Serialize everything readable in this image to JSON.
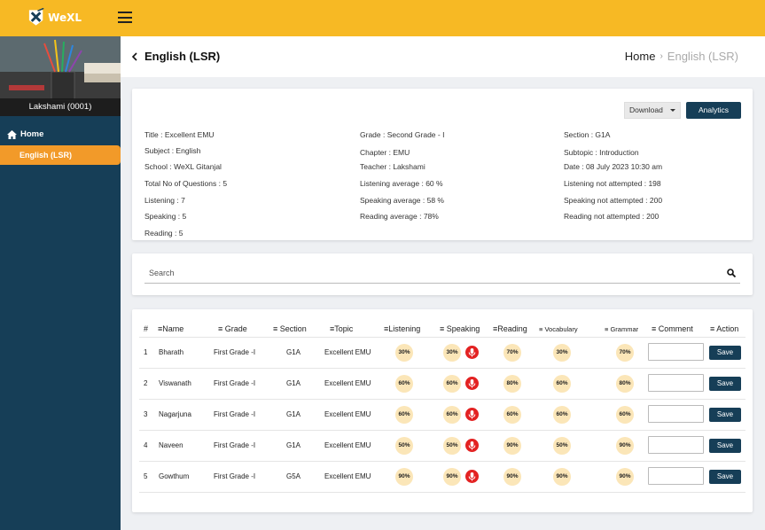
{
  "brand": {
    "name": "WeXL"
  },
  "sidebar": {
    "profile_name": "Lakshami (0001)",
    "nav": [
      {
        "label": "Home",
        "icon": "home-icon"
      },
      {
        "label": "English (LSR)",
        "active": true
      }
    ]
  },
  "header": {
    "title": "English (LSR)",
    "breadcrumb": [
      "Home",
      "English (LSR)"
    ]
  },
  "info": {
    "download_label": "Download",
    "analytics_label": "Analytics",
    "col1": [
      "Title :   Excellent EMU",
      "Subject :   English",
      "School :   WeXL Gitanjal",
      "Total No of Questions :   5",
      "Listening : 7",
      "Speaking :   5",
      "Reading :   5"
    ],
    "col2": [
      "Grade :  Second Grade - I",
      "Chapter :  EMU",
      "Teacher : Lakshami",
      "Listening average : 60 %",
      "Speaking  average : 58 %",
      "Reading  average : 78%"
    ],
    "col3": [
      "Section :   G1A",
      "Subtopic :   Introduction",
      "Date : 08 July 2023 10:30 am",
      "Listening not attempted : 198",
      "Speaking not attempted : 200",
      "Reading not attempted : 200"
    ]
  },
  "search": {
    "placeholder": "Search"
  },
  "table": {
    "headers": [
      "#",
      "Name",
      "Grade",
      "Section",
      "Topic",
      "Listening",
      "Speaking",
      "Reading",
      "Vocabulary",
      "Grammar",
      "Comment",
      "Action"
    ],
    "save_label": "Save",
    "rows": [
      {
        "num": "1",
        "name": "Bharath",
        "grade": "First Grade -I",
        "section": "G1A",
        "topic": "Excellent EMU",
        "listening": "30%",
        "speaking": "30%",
        "reading": "70%",
        "vocabulary": "30%",
        "grammar": "70%"
      },
      {
        "num": "2",
        "name": "Viswanath",
        "grade": "First Grade -I",
        "section": "G1A",
        "topic": "Excellent EMU",
        "listening": "60%",
        "speaking": "60%",
        "reading": "80%",
        "vocabulary": "60%",
        "grammar": "80%"
      },
      {
        "num": "3",
        "name": "Nagarjuna",
        "grade": "First Grade -I",
        "section": "G1A",
        "topic": "Excellent EMU",
        "listening": "60%",
        "speaking": "60%",
        "reading": "60%",
        "vocabulary": "60%",
        "grammar": "60%"
      },
      {
        "num": "4",
        "name": "Naveen",
        "grade": "First Grade -I",
        "section": "G1A",
        "topic": "Excellent EMU",
        "listening": "50%",
        "speaking": "50%",
        "reading": "90%",
        "vocabulary": "50%",
        "grammar": "90%"
      },
      {
        "num": "5",
        "name": "Gowthum",
        "grade": "First Grade -I",
        "section": "G5A",
        "topic": "Excellent EMU",
        "listening": "90%",
        "speaking": "90%",
        "reading": "90%",
        "vocabulary": "90%",
        "grammar": "90%"
      }
    ]
  },
  "colors": {
    "topbar": "#f7b924",
    "sidebar": "#163e57",
    "active": "#f29a29",
    "badge": "#fbe6b8",
    "mic": "#e32222"
  }
}
